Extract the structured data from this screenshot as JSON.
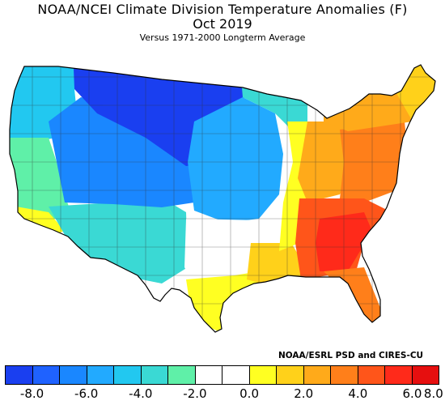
{
  "header": {
    "title": "NOAA/NCEI Climate Division Temperature Anomalies (F)",
    "period": "Oct 2019",
    "baseline": "Versus 1971-2000 Longterm Average"
  },
  "credit": "NOAA/ESRL PSD and CIRES-CU",
  "legend": {
    "colors": [
      "#1a3ff0",
      "#1f62ff",
      "#1a87ff",
      "#22aaff",
      "#22c8f0",
      "#3ad9d4",
      "#5ff0a8",
      "#ffffff",
      "#ffffff",
      "#ffff22",
      "#ffd11a",
      "#ffaa1a",
      "#ff7f1a",
      "#ff551a",
      "#ff2a1a",
      "#e60f0f"
    ],
    "tick_labels": [
      "-8.0",
      "-6.0",
      "-4.0",
      "-2.0",
      "0.0",
      "2.0",
      "4.0",
      "6.0",
      "8.0"
    ]
  },
  "map": {
    "regions": [
      {
        "name": "pacific-northwest",
        "anomaly": -3.5,
        "color": "#22c8f0"
      },
      {
        "name": "northern-rockies-plains",
        "anomaly": -7.0,
        "color": "#1a3ff0"
      },
      {
        "name": "central-great-basin",
        "anomaly": -5.0,
        "color": "#1a87ff"
      },
      {
        "name": "california-coast",
        "anomaly": -1.5,
        "color": "#5ff0a8"
      },
      {
        "name": "southern-california",
        "anomaly": 1.0,
        "color": "#ffff22"
      },
      {
        "name": "southwest",
        "anomaly": -2.5,
        "color": "#3ad9d4"
      },
      {
        "name": "central-plains",
        "anomaly": -4.0,
        "color": "#22aaff"
      },
      {
        "name": "upper-midwest",
        "anomaly": -2.5,
        "color": "#3ad9d4"
      },
      {
        "name": "south-central",
        "anomaly": 0.0,
        "color": "#ffffff"
      },
      {
        "name": "texas-gulf-coast",
        "anomaly": 1.5,
        "color": "#ffff22"
      },
      {
        "name": "lower-mississippi",
        "anomaly": 2.5,
        "color": "#ffd11a"
      },
      {
        "name": "ohio-valley",
        "anomaly": 3.5,
        "color": "#ffaa1a"
      },
      {
        "name": "mid-atlantic",
        "anomaly": 5.0,
        "color": "#ff7f1a"
      },
      {
        "name": "southeast",
        "anomaly": 6.0,
        "color": "#ff551a"
      },
      {
        "name": "georgia-carolinas-core",
        "anomaly": 7.0,
        "color": "#ff2a1a"
      },
      {
        "name": "florida",
        "anomaly": 5.0,
        "color": "#ff7f1a"
      },
      {
        "name": "northeast",
        "anomaly": 3.5,
        "color": "#ffaa1a"
      },
      {
        "name": "new-england",
        "anomaly": 2.5,
        "color": "#ffd11a"
      }
    ]
  }
}
